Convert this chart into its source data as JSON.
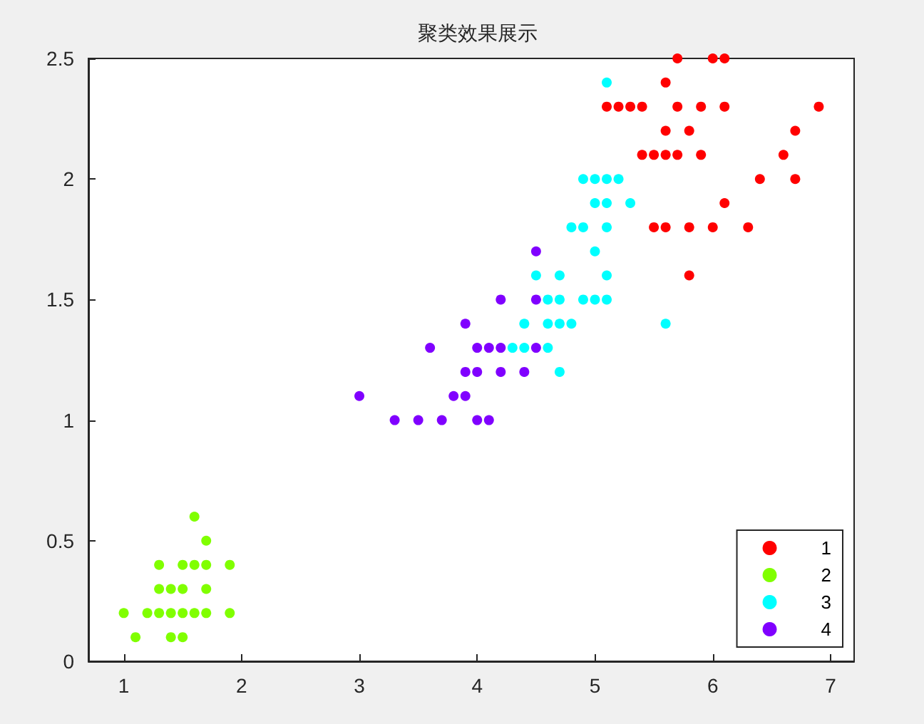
{
  "chart_data": {
    "type": "scatter",
    "title": "聚类效果展示",
    "xlim": [
      0.7,
      7.2
    ],
    "ylim": [
      0,
      2.5
    ],
    "xticks": [
      1,
      2,
      3,
      4,
      5,
      6,
      7
    ],
    "yticks": [
      0,
      0.5,
      1,
      1.5,
      2,
      2.5
    ],
    "grid": false,
    "legend": "bottom right",
    "marker": "circle",
    "series": [
      {
        "name": "1",
        "color": "#ff0000",
        "x": [
          5.7,
          6.0,
          6.1,
          5.6,
          5.1,
          5.2,
          5.3,
          5.4,
          5.7,
          5.9,
          6.1,
          6.9,
          5.6,
          5.8,
          6.7,
          5.4,
          5.5,
          5.6,
          5.7,
          5.9,
          6.6,
          6.4,
          6.7,
          6.1,
          5.5,
          5.6,
          5.8,
          6.0,
          6.3,
          5.8
        ],
        "values": [
          2.5,
          2.5,
          2.5,
          2.4,
          2.3,
          2.3,
          2.3,
          2.3,
          2.3,
          2.3,
          2.3,
          2.3,
          2.2,
          2.2,
          2.2,
          2.1,
          2.1,
          2.1,
          2.1,
          2.1,
          2.1,
          2.0,
          2.0,
          1.9,
          1.8,
          1.8,
          1.8,
          1.8,
          1.8,
          1.6
        ]
      },
      {
        "name": "2",
        "color": "#80ff00",
        "x": [
          1.6,
          1.7,
          1.3,
          1.5,
          1.6,
          1.7,
          1.9,
          1.3,
          1.4,
          1.5,
          1.7,
          1.0,
          1.2,
          1.3,
          1.4,
          1.5,
          1.6,
          1.7,
          1.9,
          1.1,
          1.4,
          1.5
        ],
        "values": [
          0.6,
          0.5,
          0.4,
          0.4,
          0.4,
          0.4,
          0.4,
          0.3,
          0.3,
          0.3,
          0.3,
          0.2,
          0.2,
          0.2,
          0.2,
          0.2,
          0.2,
          0.2,
          0.2,
          0.1,
          0.1,
          0.1
        ]
      },
      {
        "name": "3",
        "color": "#00ffff",
        "x": [
          5.1,
          4.9,
          5.0,
          5.1,
          5.2,
          5.0,
          5.1,
          5.3,
          4.8,
          4.9,
          5.1,
          5.0,
          4.5,
          4.7,
          5.1,
          4.6,
          4.7,
          4.9,
          5.0,
          5.1,
          4.4,
          4.6,
          4.7,
          4.8,
          5.6,
          4.3,
          4.4,
          4.6,
          4.7
        ],
        "values": [
          2.4,
          2.0,
          2.0,
          2.0,
          2.0,
          1.9,
          1.9,
          1.9,
          1.8,
          1.8,
          1.8,
          1.7,
          1.6,
          1.6,
          1.6,
          1.5,
          1.5,
          1.5,
          1.5,
          1.5,
          1.4,
          1.4,
          1.4,
          1.4,
          1.4,
          1.3,
          1.3,
          1.3,
          1.2
        ]
      },
      {
        "name": "4",
        "color": "#8000ff",
        "x": [
          4.5,
          4.2,
          4.5,
          3.9,
          3.6,
          4.0,
          4.1,
          4.2,
          4.5,
          3.9,
          4.0,
          4.2,
          4.4,
          3.0,
          3.8,
          3.9,
          3.3,
          3.5,
          3.7,
          4.0,
          4.1
        ],
        "values": [
          1.7,
          1.5,
          1.5,
          1.4,
          1.3,
          1.3,
          1.3,
          1.3,
          1.3,
          1.2,
          1.2,
          1.2,
          1.2,
          1.1,
          1.1,
          1.1,
          1.0,
          1.0,
          1.0,
          1.0,
          1.0
        ]
      }
    ]
  }
}
